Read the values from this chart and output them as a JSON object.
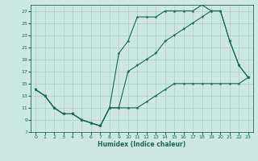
{
  "xlabel": "Humidex (Indice chaleur)",
  "background_color": "#cce8e0",
  "grid_color": "#aaccc4",
  "line_color": "#1a6858",
  "xlim": [
    -0.5,
    23.5
  ],
  "ylim": [
    7,
    28
  ],
  "yticks": [
    7,
    9,
    11,
    13,
    15,
    17,
    19,
    21,
    23,
    25,
    27
  ],
  "xticks": [
    0,
    1,
    2,
    3,
    4,
    5,
    6,
    7,
    8,
    9,
    10,
    11,
    12,
    13,
    14,
    15,
    16,
    17,
    18,
    19,
    20,
    21,
    22,
    23
  ],
  "line1_x": [
    0,
    1,
    2,
    3,
    4,
    5,
    6,
    7,
    8,
    9,
    10,
    11,
    12,
    13,
    14,
    15,
    16,
    17,
    18,
    19,
    20,
    21,
    22,
    23
  ],
  "line1_y": [
    14,
    13,
    11,
    10,
    10,
    9,
    8.5,
    8,
    11,
    11,
    11,
    11,
    12,
    13,
    14,
    15,
    15,
    15,
    15,
    15,
    15,
    15,
    15,
    16
  ],
  "line2_x": [
    0,
    1,
    2,
    3,
    4,
    5,
    6,
    7,
    8,
    9,
    10,
    11,
    12,
    13,
    14,
    15,
    16,
    17,
    18,
    19,
    20,
    21,
    22,
    23
  ],
  "line2_y": [
    14,
    13,
    11,
    10,
    10,
    9,
    8.5,
    8,
    11,
    20,
    22,
    26,
    26,
    26,
    27,
    27,
    27,
    27,
    28,
    27,
    27,
    22,
    18,
    16
  ],
  "line3_x": [
    0,
    1,
    2,
    3,
    4,
    5,
    6,
    7,
    8,
    9,
    10,
    11,
    12,
    13,
    14,
    15,
    16,
    17,
    18,
    19,
    20,
    21,
    22,
    23
  ],
  "line3_y": [
    14,
    13,
    11,
    10,
    10,
    9,
    8.5,
    8,
    11,
    11,
    17,
    18,
    19,
    20,
    22,
    23,
    24,
    25,
    26,
    27,
    27,
    22,
    18,
    16
  ]
}
